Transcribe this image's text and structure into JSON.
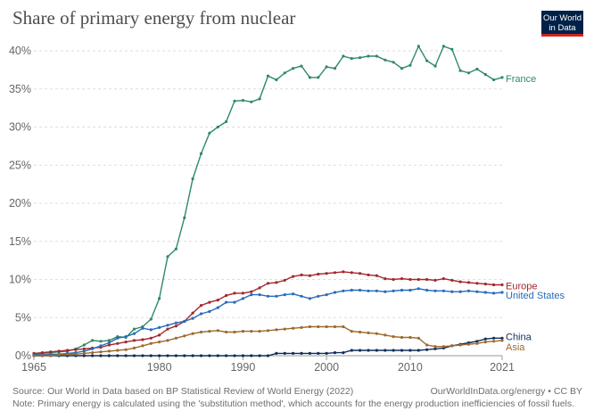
{
  "title": "Share of primary energy from nuclear",
  "logo": {
    "line1": "Our World",
    "line2": "in Data"
  },
  "footer": {
    "source": "Source: Our World in Data based on BP Statistical Review of World Energy (2022)",
    "url": "OurWorldInData.org/energy • CC BY",
    "note": "Note: Primary energy is calculated using the 'substitution method', which accounts for the energy production inefficiencies of fossil fuels."
  },
  "chart_data": {
    "type": "line",
    "title": "Share of primary energy from nuclear",
    "xlim": [
      1965,
      2021
    ],
    "ylim": [
      0,
      40
    ],
    "x_ticks": [
      1965,
      1980,
      1990,
      2000,
      2010,
      2021
    ],
    "y_ticks": [
      0,
      5,
      10,
      15,
      20,
      25,
      30,
      35,
      40
    ],
    "y_tick_labels": [
      "0%",
      "5%",
      "10%",
      "15%",
      "20%",
      "25%",
      "30%",
      "35%",
      "40%"
    ],
    "grid": "horizontal",
    "legend": "inline-right",
    "x": [
      1965,
      1966,
      1967,
      1968,
      1969,
      1970,
      1971,
      1972,
      1973,
      1974,
      1975,
      1976,
      1977,
      1978,
      1979,
      1980,
      1981,
      1982,
      1983,
      1984,
      1985,
      1986,
      1987,
      1988,
      1989,
      1990,
      1991,
      1992,
      1993,
      1994,
      1995,
      1996,
      1997,
      1998,
      1999,
      2000,
      2001,
      2002,
      2003,
      2004,
      2005,
      2006,
      2007,
      2008,
      2009,
      2010,
      2011,
      2012,
      2013,
      2014,
      2015,
      2016,
      2017,
      2018,
      2019,
      2020,
      2021
    ],
    "series": [
      {
        "name": "France",
        "color": "#2e8a67",
        "values": [
          0.2,
          0.3,
          0.4,
          0.5,
          0.6,
          0.9,
          1.4,
          2.0,
          1.9,
          2.0,
          2.5,
          2.4,
          3.5,
          3.8,
          4.8,
          7.5,
          13.0,
          14.0,
          18.1,
          23.2,
          26.5,
          29.2,
          30.0,
          30.7,
          33.4,
          33.5,
          33.3,
          33.7,
          36.7,
          36.2,
          37.1,
          37.7,
          38.0,
          36.5,
          36.5,
          37.9,
          37.7,
          39.3,
          39.0,
          39.1,
          39.3,
          39.3,
          38.8,
          38.5,
          37.7,
          38.1,
          40.6,
          38.7,
          38.0,
          40.6,
          40.2,
          37.4,
          37.1,
          37.6,
          36.9,
          36.2,
          36.5
        ]
      },
      {
        "name": "Europe",
        "color": "#a2282e",
        "values": [
          0.3,
          0.4,
          0.5,
          0.6,
          0.7,
          0.8,
          0.9,
          1.0,
          1.1,
          1.4,
          1.6,
          1.8,
          2.0,
          2.1,
          2.3,
          2.7,
          3.5,
          3.9,
          4.5,
          5.6,
          6.6,
          7.0,
          7.3,
          7.9,
          8.2,
          8.2,
          8.4,
          8.9,
          9.5,
          9.6,
          9.9,
          10.4,
          10.6,
          10.5,
          10.7,
          10.8,
          10.9,
          11.0,
          10.9,
          10.8,
          10.6,
          10.5,
          10.1,
          10.0,
          10.1,
          10.0,
          10.0,
          10.0,
          9.9,
          10.1,
          9.9,
          9.7,
          9.6,
          9.5,
          9.4,
          9.3,
          9.3
        ]
      },
      {
        "name": "United States",
        "color": "#286bbb",
        "values": [
          0.1,
          0.1,
          0.2,
          0.2,
          0.3,
          0.4,
          0.6,
          0.9,
          1.3,
          1.7,
          2.3,
          2.5,
          2.9,
          3.6,
          3.4,
          3.7,
          4.0,
          4.3,
          4.5,
          4.9,
          5.5,
          5.8,
          6.3,
          7.0,
          7.0,
          7.5,
          8.0,
          8.0,
          7.8,
          7.8,
          8.0,
          8.1,
          7.8,
          7.5,
          7.8,
          8.0,
          8.3,
          8.5,
          8.6,
          8.6,
          8.5,
          8.5,
          8.4,
          8.5,
          8.6,
          8.6,
          8.8,
          8.6,
          8.5,
          8.5,
          8.4,
          8.4,
          8.5,
          8.4,
          8.3,
          8.2,
          8.3
        ]
      },
      {
        "name": "China",
        "color": "#0f2e58",
        "values": [
          0,
          0,
          0,
          0,
          0,
          0,
          0,
          0,
          0,
          0,
          0,
          0,
          0,
          0,
          0,
          0,
          0,
          0,
          0,
          0,
          0,
          0,
          0,
          0,
          0,
          0,
          0,
          0,
          0,
          0.3,
          0.3,
          0.3,
          0.3,
          0.3,
          0.3,
          0.3,
          0.4,
          0.4,
          0.7,
          0.7,
          0.7,
          0.7,
          0.7,
          0.7,
          0.7,
          0.7,
          0.7,
          0.8,
          0.9,
          1.0,
          1.3,
          1.5,
          1.7,
          1.9,
          2.2,
          2.3,
          2.3
        ]
      },
      {
        "name": "Asia",
        "color": "#9d6a2e",
        "values": [
          0,
          0,
          0,
          0.1,
          0.2,
          0.2,
          0.3,
          0.4,
          0.5,
          0.6,
          0.7,
          0.8,
          1.0,
          1.3,
          1.6,
          1.8,
          2.0,
          2.3,
          2.6,
          2.9,
          3.1,
          3.2,
          3.3,
          3.1,
          3.1,
          3.2,
          3.2,
          3.2,
          3.3,
          3.4,
          3.5,
          3.6,
          3.7,
          3.8,
          3.8,
          3.8,
          3.8,
          3.8,
          3.2,
          3.1,
          3.0,
          2.9,
          2.7,
          2.5,
          2.4,
          2.4,
          2.3,
          1.4,
          1.2,
          1.2,
          1.3,
          1.4,
          1.5,
          1.6,
          1.8,
          1.9,
          2.0
        ]
      }
    ]
  }
}
